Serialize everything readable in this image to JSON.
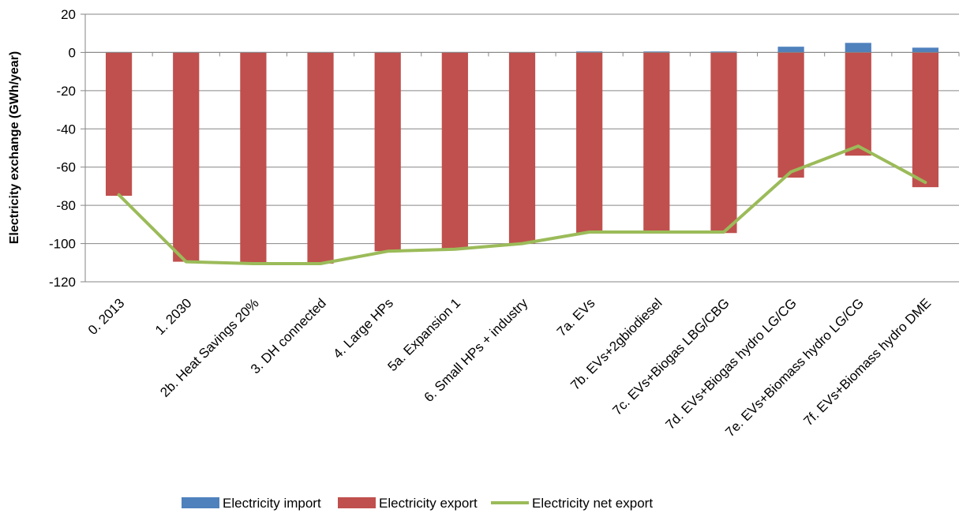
{
  "chart_data": {
    "type": "bar",
    "title": "",
    "xlabel": "",
    "ylabel": "Electricity exchange (GWh/year)",
    "ylim": [
      -120,
      20
    ],
    "yticks": [
      20,
      0,
      -20,
      -40,
      -60,
      -80,
      -100,
      -120
    ],
    "grid": true,
    "legend_position": "bottom",
    "categories": [
      "0. 2013",
      "1. 2030",
      "2b. Heat Savings 20%",
      "3. DH connected",
      "4. Large HPs",
      "5a. Expansion 1",
      "6. Small HPs + industry",
      "7a. EVs",
      "7b. EVs+2gbiodiesel",
      "7c. EVs+Biogas LBG/CBG",
      "7d. EVs+Biogas hydro LG/CG",
      "7e. EVs+Biomass hydro LG/CG",
      "7f. EVs+Biomass hydro DME"
    ],
    "series": [
      {
        "name": "Electricity import",
        "kind": "bar",
        "color": "#4f81bd",
        "values": [
          0.2,
          0.2,
          0.2,
          0.2,
          0.2,
          0.2,
          0.2,
          0.5,
          0.5,
          0.5,
          3,
          5,
          2.5
        ]
      },
      {
        "name": "Electricity export",
        "kind": "bar",
        "color": "#c0504d",
        "values": [
          -75,
          -109.5,
          -110.5,
          -110.5,
          -104,
          -103,
          -100,
          -94.5,
          -94.5,
          -94.5,
          -65.5,
          -54,
          -70.5
        ]
      },
      {
        "name": "Electricity net export",
        "kind": "line",
        "color": "#9bbb59",
        "values": [
          -74.5,
          -109.5,
          -110.5,
          -110.5,
          -104,
          -103,
          -100,
          -94,
          -94,
          -94,
          -62.5,
          -49,
          -68
        ]
      }
    ]
  }
}
